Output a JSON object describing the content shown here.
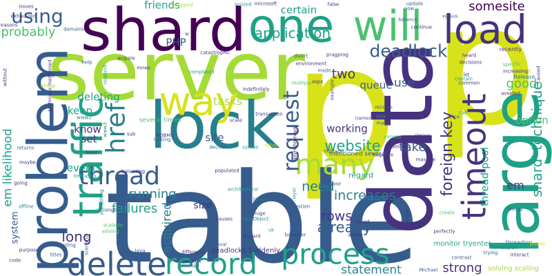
{
  "palette": {
    "yellow": "#d8e219",
    "lime": "#a5db36",
    "green": "#4ac16d",
    "teal": "#1fa187",
    "blue": "#277f8e",
    "navy": "#365c8d",
    "indigo": "#46327e",
    "purple": "#440154"
  },
  "words": [
    {
      "text": "p",
      "color": "yellow"
    },
    {
      "text": "p",
      "color": "yellow"
    },
    {
      "text": "table",
      "color": "navy"
    },
    {
      "text": "server",
      "color": "lime"
    },
    {
      "text": "data",
      "color": "indigo"
    },
    {
      "text": "lock",
      "color": "blue"
    },
    {
      "text": "large",
      "color": "teal"
    },
    {
      "text": "shard",
      "color": "purple"
    },
    {
      "text": "one",
      "color": "teal"
    },
    {
      "text": "will",
      "color": "green"
    },
    {
      "text": "load",
      "color": "indigo"
    },
    {
      "text": "way",
      "color": "yellow"
    },
    {
      "text": "timeout",
      "color": "indigo"
    },
    {
      "text": "problem",
      "color": "navy"
    },
    {
      "text": "traffic",
      "color": "teal"
    },
    {
      "text": "delete",
      "color": "navy"
    },
    {
      "text": "record",
      "color": "teal"
    },
    {
      "text": "process",
      "color": "teal"
    },
    {
      "text": "many",
      "color": "lime"
    },
    {
      "text": "href",
      "color": "blue"
    },
    {
      "text": "thread",
      "color": "navy"
    },
    {
      "text": "request",
      "color": "navy"
    },
    {
      "text": "deadlock",
      "color": "navy"
    },
    {
      "text": "using",
      "color": "navy"
    },
    {
      "text": "application",
      "color": "teal"
    },
    {
      "text": "somesite",
      "color": "purple"
    },
    {
      "text": "foreign key",
      "color": "indigo"
    },
    {
      "text": "shard' technique",
      "color": "teal"
    },
    {
      "text": "em likelihood",
      "color": "teal"
    },
    {
      "text": "website",
      "color": "teal"
    },
    {
      "text": "need",
      "color": "blue"
    },
    {
      "text": "increases",
      "color": "blue"
    },
    {
      "text": "already",
      "color": "navy"
    },
    {
      "text": "rows",
      "color": "indigo"
    },
    {
      "text": "failures",
      "color": "teal"
    },
    {
      "text": "running",
      "color": "blue"
    },
    {
      "text": "acquired",
      "color": "blue"
    },
    {
      "text": "long",
      "color": "indigo"
    },
    {
      "text": "statement",
      "color": "blue"
    },
    {
      "text": "strong",
      "color": "indigo"
    },
    {
      "text": "probably",
      "color": "green"
    },
    {
      "text": "certain",
      "color": "teal"
    },
    {
      "text": "friends",
      "color": "teal"
    },
    {
      "text": "tasks",
      "color": "lime"
    },
    {
      "text": "site",
      "color": "navy"
    },
    {
      "text": "take",
      "color": "navy"
    },
    {
      "text": "working",
      "color": "indigo"
    },
    {
      "text": "option",
      "color": "green"
    },
    {
      "text": "good",
      "color": "green"
    },
    {
      "text": "two",
      "color": "indigo"
    },
    {
      "text": "queue",
      "color": "navy"
    },
    {
      "text": "use",
      "color": "navy"
    },
    {
      "text": "em",
      "color": "indigo"
    },
    {
      "text": "thread pool",
      "color": "teal"
    },
    {
      "text": "deleting",
      "color": "teal"
    },
    {
      "text": "keep",
      "color": "teal"
    },
    {
      "text": "know",
      "color": "indigo"
    },
    {
      "text": "set",
      "color": "indigo"
    },
    {
      "text": "events",
      "color": "teal"
    },
    {
      "text": "PHP",
      "color": "navy"
    },
    {
      "text": "system",
      "color": "navy"
    },
    {
      "text": "size",
      "color": "indigo"
    },
    {
      "text": "solving scaling",
      "color": "lime"
    },
    {
      "text": "regard",
      "color": "teal"
    },
    {
      "text": "deadlocks Suddenly",
      "color": "indigo"
    },
    {
      "text": "monitor tryenter",
      "color": "teal"
    },
    {
      "text": "several times",
      "color": "green"
    },
    {
      "text": "mentioned several",
      "color": "navy"
    },
    {
      "text": "recently",
      "color": "indigo"
    },
    {
      "text": "Release",
      "color": "blue"
    },
    {
      "text": "architectural",
      "color": "teal"
    },
    {
      "text": "catastrophic",
      "color": "indigo"
    },
    {
      "text": "transaction",
      "color": "indigo"
    },
    {
      "text": "asynchronous",
      "color": "purple"
    },
    {
      "text": "indefinitely",
      "color": "indigo"
    },
    {
      "text": "populated",
      "color": "indigo"
    },
    {
      "text": "database",
      "color": "navy"
    },
    {
      "text": "hugesite",
      "color": "indigo"
    },
    {
      "text": "environment",
      "color": "indigo"
    },
    {
      "text": "technique mentioned",
      "color": "indigo"
    },
    {
      "text": "threading",
      "color": "blue"
    },
    {
      "text": "TimeSpan",
      "color": "blue"
    },
    {
      "text": "perfectly",
      "color": "indigo"
    },
    {
      "text": "Michael",
      "color": "navy"
    },
    {
      "text": "lockObject",
      "color": "blue"
    },
    {
      "text": "Nygard",
      "color": "indigo"
    },
    {
      "text": "balancer",
      "color": "indigo"
    },
    {
      "text": "balancing",
      "color": "indigo"
    },
    {
      "text": "scale",
      "color": "indigo"
    },
    {
      "text": "massive",
      "color": "indigo"
    },
    {
      "text": "contrast",
      "color": "navy"
    },
    {
      "text": "proper",
      "color": "yellow"
    },
    {
      "text": "interact",
      "color": "indigo"
    },
    {
      "text": "trying",
      "color": "navy"
    },
    {
      "text": "things",
      "color": "navy"
    },
    {
      "text": "create",
      "color": "green"
    },
    {
      "text": "speed",
      "color": "indigo"
    },
    {
      "text": "allows",
      "color": "indigo"
    },
    {
      "text": "variety",
      "color": "indigo"
    },
    {
      "text": "layer",
      "color": "teal"
    },
    {
      "text": "question",
      "color": "navy"
    },
    {
      "text": "huge",
      "color": "indigo"
    },
    {
      "text": "causes",
      "color": "indigo"
    },
    {
      "text": "library",
      "color": "blue"
    },
    {
      "text": "retrieval",
      "color": "navy"
    },
    {
      "text": "differently",
      "color": "indigo"
    },
    {
      "text": "aborted",
      "color": "navy"
    },
    {
      "text": "match",
      "color": "indigo"
    },
    {
      "text": "Java",
      "color": "navy"
    },
    {
      "text": "waiting",
      "color": "navy"
    },
    {
      "text": "titles",
      "color": "navy"
    },
    {
      "text": "purpose",
      "color": "indigo"
    },
    {
      "text": "code",
      "color": "indigo"
    },
    {
      "text": "scenario",
      "color": "navy"
    },
    {
      "text": "solving",
      "color": "green"
    },
    {
      "text": "scalable",
      "color": "green"
    },
    {
      "text": "offline",
      "color": "blue"
    },
    {
      "text": "maybe",
      "color": "indigo"
    },
    {
      "text": "going",
      "color": "indigo"
    },
    {
      "text": "limitation",
      "color": "teal"
    },
    {
      "text": "loser",
      "color": "indigo"
    },
    {
      "text": "sub",
      "color": "indigo"
    },
    {
      "text": "locking",
      "color": "navy"
    },
    {
      "text": "decide",
      "color": "navy"
    },
    {
      "text": "syntax",
      "color": "teal"
    },
    {
      "text": "solve",
      "color": "yellow"
    },
    {
      "text": "indicate",
      "color": "navy"
    },
    {
      "text": "expires",
      "color": "green"
    },
    {
      "text": "always",
      "color": "indigo"
    },
    {
      "text": "design",
      "color": "indigo"
    },
    {
      "text": "receive",
      "color": "navy"
    },
    {
      "text": "less",
      "color": "teal"
    },
    {
      "text": "named",
      "color": "navy"
    },
    {
      "text": "make",
      "color": "navy"
    },
    {
      "text": "call",
      "color": "teal"
    },
    {
      "text": "nice",
      "color": "navy"
    },
    {
      "text": "avoided",
      "color": "indigo"
    },
    {
      "text": "chosen",
      "color": "lime"
    },
    {
      "text": "specific",
      "color": "green"
    },
    {
      "text": "increasing",
      "color": "indigo"
    },
    {
      "text": "let",
      "color": "indigo"
    },
    {
      "text": "contain",
      "color": "teal"
    },
    {
      "text": "common",
      "color": "indigo"
    },
    {
      "text": "aspx",
      "color": "indigo"
    },
    {
      "text": "example",
      "color": "navy"
    },
    {
      "text": "multiple",
      "color": "green"
    },
    {
      "text": "msdn",
      "color": "navy"
    },
    {
      "text": "pragprog",
      "color": "indigo"
    },
    {
      "text": "divert",
      "color": "navy"
    },
    {
      "text": "heard",
      "color": "indigo"
    },
    {
      "text": "decisions",
      "color": "indigo"
    },
    {
      "text": "caused",
      "color": "indigo"
    },
    {
      "text": "balance",
      "color": "navy"
    },
    {
      "text": "now",
      "color": "navy"
    },
    {
      "text": "update",
      "color": "navy"
    },
    {
      "text": "versus",
      "color": "navy"
    },
    {
      "text": "continue",
      "color": "indigo"
    },
    {
      "text": "false",
      "color": "indigo"
    },
    {
      "text": "resized",
      "color": "teal"
    },
    {
      "text": "wrapped",
      "color": "lime"
    },
    {
      "text": "issues",
      "color": "indigo"
    },
    {
      "text": "exhausted",
      "color": "indigo"
    },
    {
      "text": "domains",
      "color": "navy"
    },
    {
      "text": "reasons",
      "color": "indigo"
    },
    {
      "text": "without",
      "color": "indigo"
    },
    {
      "text": "help",
      "color": "navy"
    },
    {
      "text": "respond",
      "color": "teal"
    },
    {
      "text": "mnee",
      "color": "indigo"
    },
    {
      "text": "completed",
      "color": "teal"
    },
    {
      "text": "acquire",
      "color": "indigo"
    },
    {
      "text": "whole",
      "color": "indigo"
    },
    {
      "text": "wrong",
      "color": "lime"
    },
    {
      "text": "www2",
      "color": "blue"
    },
    {
      "text": "www3",
      "color": "blue"
    },
    {
      "text": "RDBMS",
      "color": "indigo"
    },
    {
      "text": "returns",
      "color": "navy"
    },
    {
      "text": "langblog",
      "color": "navy"
    },
    {
      "text": "something",
      "color": "blue"
    },
    {
      "text": "uk",
      "color": "teal"
    },
    {
      "text": "ie",
      "color": "indigo"
    },
    {
      "text": "microsoft",
      "color": "indigo"
    },
    {
      "text": "Eg",
      "color": "indigo"
    },
    {
      "text": "us",
      "color": "indigo"
    },
    {
      "text": "db",
      "color": "navy"
    },
    {
      "text": "re",
      "color": "navy"
    },
    {
      "text": "c",
      "color": "indigo"
    },
    {
      "text": "wait",
      "color": "navy"
    }
  ]
}
